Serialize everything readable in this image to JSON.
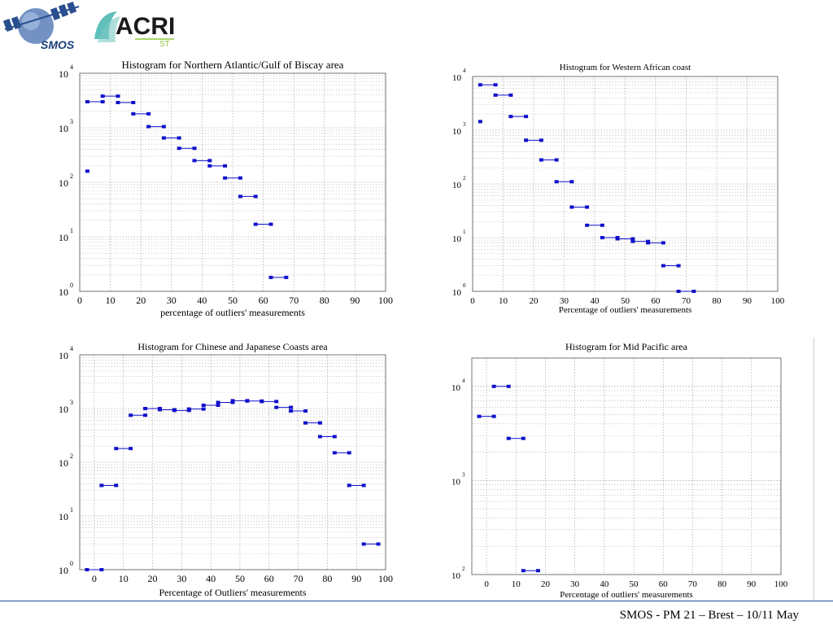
{
  "header": {
    "logo_smos_text": "SMOS",
    "logo_acri_text": "ACRI",
    "logo_acri_sub": "ST"
  },
  "footer": {
    "text": "SMOS - PM 21 – Brest – 10/11 May"
  },
  "colors": {
    "series": "#1010cc",
    "footer_rule": "#1f4e9e"
  },
  "chart_data": [
    {
      "type": "scatter",
      "title": "Histogram for Northern Atlantic/Gulf of Biscay area",
      "xlabel": "percentage of outliers' measurements",
      "ylabel": "",
      "yscale": "log",
      "xlim": [
        0,
        100
      ],
      "ylim": [
        1,
        10000
      ],
      "xticks": [
        0,
        10,
        20,
        30,
        40,
        50,
        60,
        70,
        80,
        90,
        100
      ],
      "yticks": [
        1,
        10,
        100,
        1000,
        10000
      ],
      "grid": true,
      "segments": [
        {
          "x": [
            2.5,
            2.5
          ],
          "y": 160
        },
        {
          "x": [
            2.5,
            7.5
          ],
          "y": 3000
        },
        {
          "x": [
            7.5,
            12.5
          ],
          "y": 3800
        },
        {
          "x": [
            12.5,
            17.5
          ],
          "y": 2900
        },
        {
          "x": [
            17.5,
            22.5
          ],
          "y": 1800
        },
        {
          "x": [
            22.5,
            27.5
          ],
          "y": 1050
        },
        {
          "x": [
            27.5,
            32.5
          ],
          "y": 650
        },
        {
          "x": [
            32.5,
            37.5
          ],
          "y": 420
        },
        {
          "x": [
            37.5,
            42.5
          ],
          "y": 250
        },
        {
          "x": [
            42.5,
            47.5
          ],
          "y": 200
        },
        {
          "x": [
            47.5,
            52.5
          ],
          "y": 120
        },
        {
          "x": [
            52.5,
            57.5
          ],
          "y": 55
        },
        {
          "x": [
            57.5,
            62.5
          ],
          "y": 17
        },
        {
          "x": [
            62.5,
            67.5
          ],
          "y": 1.8
        }
      ]
    },
    {
      "type": "scatter",
      "title": "Histogram for Western African coast",
      "xlabel": "Percentage of outliers' measurements",
      "ylabel": "",
      "yscale": "log",
      "xlim": [
        0,
        100
      ],
      "ylim": [
        1,
        10000
      ],
      "xticks": [
        0,
        10,
        20,
        30,
        40,
        50,
        60,
        70,
        80,
        90,
        100
      ],
      "yticks": [
        1,
        10,
        100,
        1000,
        10000
      ],
      "grid": true,
      "segments": [
        {
          "x": [
            2.5,
            2.5
          ],
          "y": 1450
        },
        {
          "x": [
            2.5,
            7.5
          ],
          "y": 7000
        },
        {
          "x": [
            7.5,
            12.5
          ],
          "y": 4500
        },
        {
          "x": [
            12.5,
            17.5
          ],
          "y": 1800
        },
        {
          "x": [
            17.5,
            22.5
          ],
          "y": 650
        },
        {
          "x": [
            22.5,
            27.5
          ],
          "y": 280
        },
        {
          "x": [
            27.5,
            32.5
          ],
          "y": 110
        },
        {
          "x": [
            32.5,
            37.5
          ],
          "y": 37
        },
        {
          "x": [
            37.5,
            42.5
          ],
          "y": 17
        },
        {
          "x": [
            42.5,
            47.5
          ],
          "y": 10
        },
        {
          "x": [
            47.5,
            52.5
          ],
          "y": 9.5
        },
        {
          "x": [
            52.5,
            57.5
          ],
          "y": 8.5
        },
        {
          "x": [
            57.5,
            62.5
          ],
          "y": 8
        },
        {
          "x": [
            62.5,
            67.5
          ],
          "y": 3
        },
        {
          "x": [
            67.5,
            72.5
          ],
          "y": 1
        }
      ]
    },
    {
      "type": "scatter",
      "title": "Histogram for Chinese and Japanese Coasts area",
      "xlabel": "Percentage of Outliers' measurements",
      "ylabel": "",
      "yscale": "log",
      "xlim": [
        -5,
        100
      ],
      "ylim": [
        1,
        10000
      ],
      "xticks": [
        0,
        10,
        20,
        30,
        40,
        50,
        60,
        70,
        80,
        90,
        100
      ],
      "yticks": [
        1,
        10,
        100,
        1000,
        10000
      ],
      "grid": true,
      "segments": [
        {
          "x": [
            -2.5,
            2.5
          ],
          "y": 1
        },
        {
          "x": [
            2.5,
            7.5
          ],
          "y": 37
        },
        {
          "x": [
            7.5,
            12.5
          ],
          "y": 180
        },
        {
          "x": [
            12.5,
            17.5
          ],
          "y": 750
        },
        {
          "x": [
            17.5,
            22.5
          ],
          "y": 1000
        },
        {
          "x": [
            22.5,
            27.5
          ],
          "y": 950
        },
        {
          "x": [
            27.5,
            32.5
          ],
          "y": 920
        },
        {
          "x": [
            32.5,
            37.5
          ],
          "y": 980
        },
        {
          "x": [
            37.5,
            42.5
          ],
          "y": 1150
        },
        {
          "x": [
            42.5,
            47.5
          ],
          "y": 1300
        },
        {
          "x": [
            47.5,
            52.5
          ],
          "y": 1400
        },
        {
          "x": [
            52.5,
            57.5
          ],
          "y": 1380
        },
        {
          "x": [
            57.5,
            62.5
          ],
          "y": 1350
        },
        {
          "x": [
            62.5,
            67.5
          ],
          "y": 1050
        },
        {
          "x": [
            67.5,
            72.5
          ],
          "y": 900
        },
        {
          "x": [
            72.5,
            77.5
          ],
          "y": 540
        },
        {
          "x": [
            77.5,
            82.5
          ],
          "y": 300
        },
        {
          "x": [
            82.5,
            87.5
          ],
          "y": 150
        },
        {
          "x": [
            87.5,
            92.5
          ],
          "y": 37
        },
        {
          "x": [
            92.5,
            97.5
          ],
          "y": 3
        }
      ]
    },
    {
      "type": "scatter",
      "title": "Histogram for Mid Pacific area",
      "xlabel": "Percentage of outliers' measurements",
      "ylabel": "",
      "yscale": "log",
      "xlim": [
        -5,
        100
      ],
      "ylim": [
        100,
        20000
      ],
      "xticks": [
        0,
        10,
        20,
        30,
        40,
        50,
        60,
        70,
        80,
        90,
        100
      ],
      "yticks": [
        100,
        1000,
        10000
      ],
      "grid": true,
      "segments": [
        {
          "x": [
            -2.5,
            2.5
          ],
          "y": 4800
        },
        {
          "x": [
            2.5,
            7.5
          ],
          "y": 10000
        },
        {
          "x": [
            7.5,
            12.5
          ],
          "y": 2800
        },
        {
          "x": [
            12.5,
            17.5
          ],
          "y": 110
        }
      ]
    }
  ]
}
